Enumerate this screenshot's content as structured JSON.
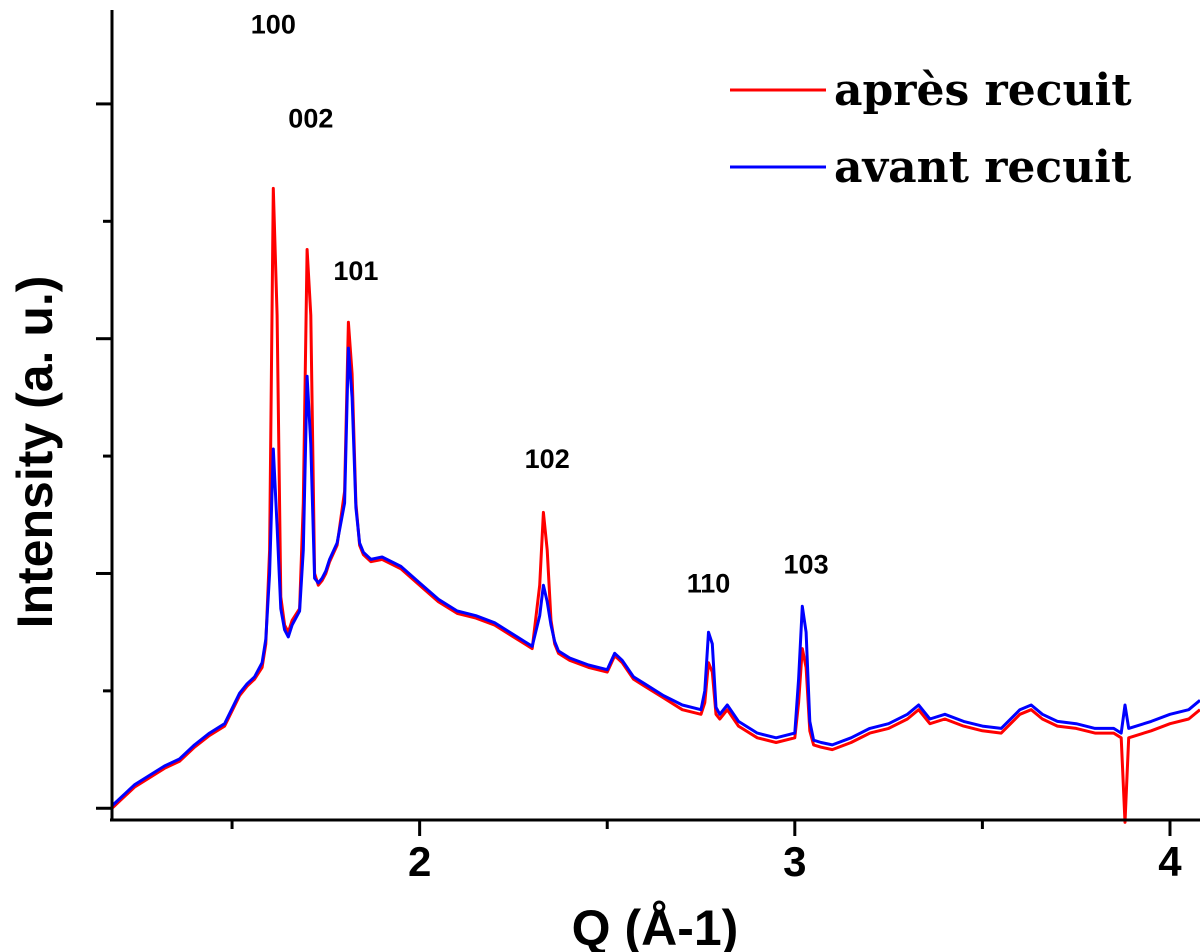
{
  "chart_data": {
    "type": "line",
    "xlabel": "Q (Å-1)",
    "ylabel": "Intensity (a. u.)",
    "xlim": [
      1.18,
      4.08
    ],
    "ylim": [
      -0.05,
      3.4
    ],
    "xticks": [
      2,
      3,
      4
    ],
    "xtick_labels": [
      "2",
      "3",
      "4"
    ],
    "yticks_labeled": false,
    "legend_position": "top-right",
    "series": [
      {
        "name": "après recuit",
        "color": "#ff0000",
        "x": [
          1.18,
          1.2,
          1.24,
          1.28,
          1.32,
          1.36,
          1.4,
          1.44,
          1.48,
          1.52,
          1.54,
          1.56,
          1.58,
          1.59,
          1.6,
          1.61,
          1.62,
          1.63,
          1.64,
          1.65,
          1.66,
          1.68,
          1.69,
          1.7,
          1.71,
          1.72,
          1.73,
          1.74,
          1.75,
          1.76,
          1.78,
          1.8,
          1.81,
          1.82,
          1.83,
          1.84,
          1.85,
          1.87,
          1.9,
          1.95,
          2.0,
          2.05,
          2.1,
          2.15,
          2.2,
          2.25,
          2.28,
          2.3,
          2.32,
          2.33,
          2.34,
          2.35,
          2.36,
          2.37,
          2.4,
          2.45,
          2.5,
          2.52,
          2.54,
          2.57,
          2.6,
          2.65,
          2.7,
          2.75,
          2.76,
          2.77,
          2.78,
          2.79,
          2.8,
          2.82,
          2.85,
          2.9,
          2.95,
          3.0,
          3.01,
          3.02,
          3.03,
          3.04,
          3.05,
          3.07,
          3.1,
          3.15,
          3.2,
          3.25,
          3.3,
          3.33,
          3.36,
          3.4,
          3.45,
          3.5,
          3.55,
          3.6,
          3.63,
          3.66,
          3.7,
          3.75,
          3.8,
          3.85,
          3.87,
          3.88,
          3.89,
          3.95,
          4.0,
          4.05,
          4.08
        ],
        "y": [
          0.0,
          0.03,
          0.09,
          0.13,
          0.17,
          0.2,
          0.26,
          0.31,
          0.35,
          0.48,
          0.52,
          0.55,
          0.6,
          0.7,
          1.1,
          2.64,
          2.1,
          0.9,
          0.78,
          0.75,
          0.8,
          0.85,
          1.3,
          2.38,
          2.1,
          1.0,
          0.95,
          0.97,
          1.0,
          1.05,
          1.12,
          1.35,
          2.07,
          1.85,
          1.3,
          1.12,
          1.08,
          1.05,
          1.06,
          1.02,
          0.95,
          0.88,
          0.83,
          0.81,
          0.78,
          0.73,
          0.7,
          0.68,
          0.95,
          1.26,
          1.1,
          0.8,
          0.7,
          0.66,
          0.63,
          0.6,
          0.58,
          0.65,
          0.62,
          0.55,
          0.52,
          0.47,
          0.42,
          0.4,
          0.45,
          0.62,
          0.58,
          0.4,
          0.38,
          0.42,
          0.35,
          0.3,
          0.28,
          0.3,
          0.45,
          0.68,
          0.6,
          0.33,
          0.27,
          0.26,
          0.25,
          0.28,
          0.32,
          0.34,
          0.38,
          0.42,
          0.36,
          0.38,
          0.35,
          0.33,
          0.32,
          0.4,
          0.42,
          0.38,
          0.35,
          0.34,
          0.32,
          0.32,
          0.3,
          -0.06,
          0.3,
          0.33,
          0.36,
          0.38,
          0.42
        ]
      },
      {
        "name": "avant recuit",
        "color": "#0000ff",
        "x": [
          1.18,
          1.2,
          1.24,
          1.28,
          1.32,
          1.36,
          1.4,
          1.44,
          1.48,
          1.52,
          1.54,
          1.56,
          1.58,
          1.59,
          1.6,
          1.61,
          1.62,
          1.63,
          1.64,
          1.65,
          1.66,
          1.68,
          1.69,
          1.7,
          1.71,
          1.72,
          1.73,
          1.74,
          1.75,
          1.76,
          1.78,
          1.8,
          1.81,
          1.82,
          1.83,
          1.84,
          1.85,
          1.87,
          1.9,
          1.95,
          2.0,
          2.05,
          2.1,
          2.15,
          2.2,
          2.25,
          2.28,
          2.3,
          2.32,
          2.33,
          2.34,
          2.35,
          2.36,
          2.37,
          2.4,
          2.45,
          2.5,
          2.52,
          2.54,
          2.57,
          2.6,
          2.65,
          2.7,
          2.75,
          2.76,
          2.77,
          2.78,
          2.79,
          2.8,
          2.82,
          2.85,
          2.9,
          2.95,
          3.0,
          3.01,
          3.02,
          3.03,
          3.04,
          3.05,
          3.07,
          3.1,
          3.15,
          3.2,
          3.25,
          3.3,
          3.33,
          3.36,
          3.4,
          3.45,
          3.5,
          3.55,
          3.6,
          3.63,
          3.66,
          3.7,
          3.75,
          3.8,
          3.85,
          3.87,
          3.88,
          3.89,
          3.95,
          4.0,
          4.05,
          4.08
        ],
        "y": [
          0.01,
          0.04,
          0.1,
          0.14,
          0.18,
          0.21,
          0.27,
          0.32,
          0.36,
          0.49,
          0.53,
          0.56,
          0.62,
          0.72,
          1.0,
          1.53,
          1.2,
          0.85,
          0.76,
          0.73,
          0.78,
          0.84,
          1.1,
          1.84,
          1.55,
          0.98,
          0.96,
          0.98,
          1.01,
          1.06,
          1.13,
          1.3,
          1.96,
          1.75,
          1.28,
          1.13,
          1.09,
          1.06,
          1.07,
          1.03,
          0.96,
          0.89,
          0.84,
          0.82,
          0.79,
          0.74,
          0.71,
          0.69,
          0.82,
          0.95,
          0.88,
          0.78,
          0.71,
          0.67,
          0.64,
          0.61,
          0.59,
          0.66,
          0.63,
          0.56,
          0.53,
          0.48,
          0.44,
          0.42,
          0.5,
          0.75,
          0.7,
          0.43,
          0.4,
          0.44,
          0.37,
          0.32,
          0.3,
          0.32,
          0.55,
          0.86,
          0.75,
          0.37,
          0.29,
          0.28,
          0.27,
          0.3,
          0.34,
          0.36,
          0.4,
          0.44,
          0.38,
          0.4,
          0.37,
          0.35,
          0.34,
          0.42,
          0.44,
          0.4,
          0.37,
          0.36,
          0.34,
          0.34,
          0.32,
          0.44,
          0.34,
          0.37,
          0.4,
          0.42,
          0.46
        ]
      }
    ],
    "annotations": [
      {
        "text": "100",
        "x": 1.61,
        "y": 3.3
      },
      {
        "text": "002",
        "x": 1.71,
        "y": 2.9
      },
      {
        "text": "101",
        "x": 1.83,
        "y": 2.25
      },
      {
        "text": "102",
        "x": 2.34,
        "y": 1.45
      },
      {
        "text": "110",
        "x": 2.77,
        "y": 0.92
      },
      {
        "text": "103",
        "x": 3.03,
        "y": 1.0
      }
    ]
  }
}
